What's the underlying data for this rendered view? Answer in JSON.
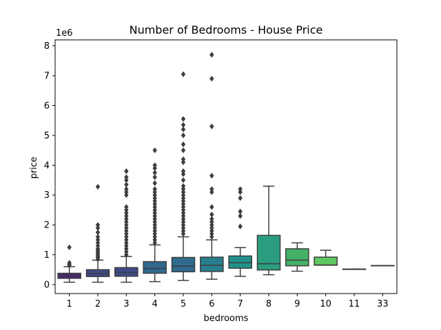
{
  "chart_data": {
    "type": "box",
    "title": "Number of Bedrooms - House Price",
    "xlabel": "bedrooms",
    "ylabel": "price",
    "y_scale_label": "1e6",
    "y_unit_multiplier": 1000000,
    "ylim": [
      -0.3,
      8.2
    ],
    "yticks": [
      0,
      1,
      2,
      3,
      4,
      5,
      6,
      7,
      8
    ],
    "grid": false,
    "legend": "none",
    "categories": [
      "1",
      "2",
      "3",
      "4",
      "5",
      "6",
      "7",
      "8",
      "9",
      "10",
      "11",
      "33"
    ],
    "boxes": [
      {
        "category": "1",
        "color": "#46247a",
        "whisker_low": 0.08,
        "q1": 0.21,
        "median": 0.3,
        "q3": 0.38,
        "whisker_high": 0.6,
        "outliers": [
          0.64,
          0.68,
          0.73,
          1.25
        ]
      },
      {
        "category": "2",
        "color": "#3e4a89",
        "whisker_low": 0.08,
        "q1": 0.27,
        "median": 0.37,
        "q3": 0.5,
        "whisker_high": 0.82,
        "outliers": [
          0.85,
          0.9,
          0.95,
          1.0,
          1.05,
          1.1,
          1.15,
          1.2,
          1.3,
          1.4,
          1.5,
          1.6,
          1.75,
          1.9,
          2.0,
          3.28
        ]
      },
      {
        "category": "3",
        "color": "#3e4a89",
        "whisker_low": 0.08,
        "q1": 0.28,
        "median": 0.41,
        "q3": 0.57,
        "whisker_high": 0.94,
        "outliers": [
          1.0,
          1.1,
          1.2,
          1.3,
          1.4,
          1.5,
          1.6,
          1.7,
          1.8,
          1.9,
          2.0,
          2.1,
          2.2,
          2.3,
          2.4,
          2.5,
          2.6,
          3.0,
          3.1,
          3.2,
          3.35,
          3.5,
          3.6,
          3.8
        ]
      },
      {
        "category": "4",
        "color": "#31688e",
        "whisker_low": 0.1,
        "q1": 0.38,
        "median": 0.54,
        "q3": 0.77,
        "whisker_high": 1.33,
        "outliers": [
          1.4,
          1.5,
          1.6,
          1.7,
          1.8,
          1.9,
          2.0,
          2.1,
          2.2,
          2.3,
          2.4,
          2.5,
          2.6,
          2.7,
          2.8,
          2.9,
          3.0,
          3.1,
          3.2,
          3.4,
          3.6,
          3.75,
          3.9,
          4.0,
          4.5
        ]
      },
      {
        "category": "5",
        "color": "#2f6b8e",
        "whisker_low": 0.14,
        "q1": 0.43,
        "median": 0.62,
        "q3": 0.91,
        "whisker_high": 1.6,
        "outliers": [
          1.7,
          1.8,
          1.9,
          2.0,
          2.1,
          2.2,
          2.3,
          2.4,
          2.5,
          2.6,
          2.7,
          2.8,
          2.9,
          3.0,
          3.1,
          3.2,
          3.3,
          3.5,
          3.7,
          3.8,
          4.1,
          4.2,
          4.5,
          4.7,
          5.0,
          5.2,
          5.35,
          5.55,
          7.05
        ]
      },
      {
        "category": "6",
        "color": "#277f8e",
        "whisker_low": 0.18,
        "q1": 0.44,
        "median": 0.65,
        "q3": 0.92,
        "whisker_high": 1.5,
        "outliers": [
          1.6,
          1.7,
          1.8,
          1.9,
          2.0,
          2.1,
          2.2,
          2.35,
          2.6,
          3.1,
          3.2,
          3.65,
          5.3,
          6.9,
          7.7
        ]
      },
      {
        "category": "7",
        "color": "#21918c",
        "whisker_low": 0.28,
        "q1": 0.55,
        "median": 0.73,
        "q3": 0.96,
        "whisker_high": 1.24,
        "outliers": [
          1.95,
          2.3,
          2.45,
          2.9,
          3.1,
          3.2
        ]
      },
      {
        "category": "8",
        "color": "#2a9d7e",
        "whisker_low": 0.33,
        "q1": 0.49,
        "median": 0.7,
        "q3": 1.65,
        "whisker_high": 3.3,
        "outliers": []
      },
      {
        "category": "9",
        "color": "#44b167",
        "whisker_low": 0.45,
        "q1": 0.63,
        "median": 0.82,
        "q3": 1.2,
        "whisker_high": 1.4,
        "outliers": []
      },
      {
        "category": "10",
        "color": "#5ec962",
        "whisker_low": 0.65,
        "q1": 0.65,
        "median": 0.66,
        "q3": 0.92,
        "whisker_high": 1.15,
        "outliers": []
      },
      {
        "category": "11",
        "color": "#aadc32",
        "whisker_low": 0.52,
        "q1": 0.52,
        "median": 0.52,
        "q3": 0.52,
        "whisker_high": 0.52,
        "outliers": []
      },
      {
        "category": "33",
        "color": "#dde318",
        "whisker_low": 0.64,
        "q1": 0.64,
        "median": 0.64,
        "q3": 0.64,
        "whisker_high": 0.64,
        "outliers": []
      }
    ]
  }
}
